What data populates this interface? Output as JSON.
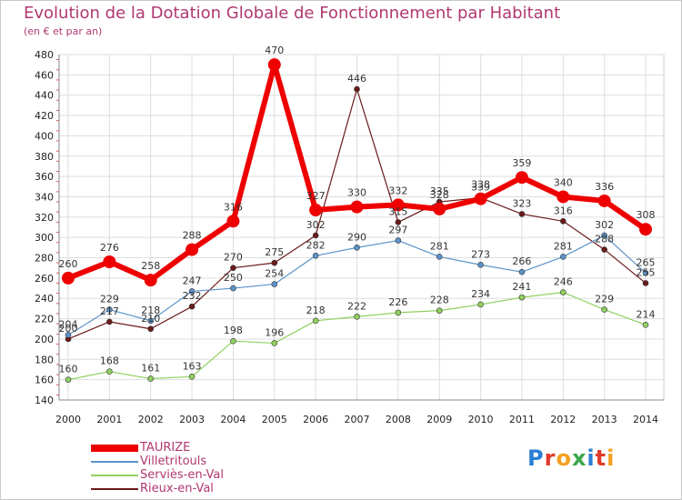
{
  "title": "Evolution de la Dotation Globale de Fonctionnement par Habitant",
  "subtitle": "(en € et par an)",
  "logo_text": "Proxiti",
  "chart_data": {
    "type": "line",
    "x": [
      "2000",
      "2001",
      "2002",
      "2003",
      "2004",
      "2005",
      "2006",
      "2007",
      "2008",
      "2009",
      "2010",
      "2011",
      "2012",
      "2013",
      "2014"
    ],
    "ylim": [
      140,
      480
    ],
    "y_ticks": [
      140,
      160,
      180,
      200,
      220,
      240,
      260,
      280,
      300,
      320,
      340,
      360,
      380,
      400,
      420,
      440,
      460,
      480
    ],
    "grid": true,
    "legend_position": "bottom-left",
    "series": [
      {
        "name": "TAURIZE",
        "color": "#ee0000",
        "values": [
          260,
          276,
          258,
          288,
          316,
          470,
          327,
          330,
          332,
          328,
          338,
          359,
          340,
          336,
          308
        ]
      },
      {
        "name": "Villetritouls",
        "color": "#5b93c9",
        "values": [
          204,
          229,
          218,
          247,
          250,
          254,
          282,
          290,
          297,
          281,
          273,
          266,
          281,
          302,
          265
        ]
      },
      {
        "name": "Serviès-en-Val",
        "color": "#90d060",
        "values": [
          160,
          168,
          161,
          163,
          198,
          196,
          218,
          222,
          226,
          228,
          234,
          241,
          246,
          229,
          214
        ]
      },
      {
        "name": "Rieux-en-Val",
        "color": "#6b1a1a",
        "values": [
          200,
          217,
          210,
          232,
          270,
          275,
          302,
          446,
          315,
          335,
          339,
          323,
          316,
          288,
          255
        ]
      }
    ]
  }
}
